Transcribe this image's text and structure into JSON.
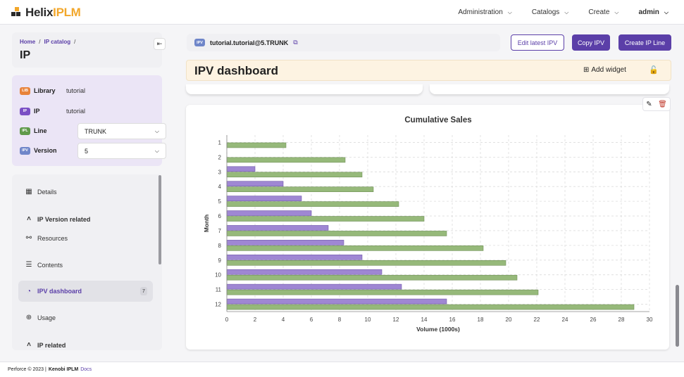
{
  "brand": {
    "name_part1": "Helix",
    "name_part2": "IPLM",
    "accent_color": "#f2a72b"
  },
  "nav": {
    "administration": "Administration",
    "catalogs": "Catalogs",
    "create": "Create",
    "user": "admin"
  },
  "breadcrumb": {
    "home": "Home",
    "catalog": "IP catalog",
    "sep": "/"
  },
  "page_title": "IP",
  "properties": {
    "library": {
      "badge": "LIB",
      "label": "Library",
      "value": "tutorial",
      "color": "#e8833a"
    },
    "ip": {
      "badge": "IP",
      "label": "IP",
      "value": "tutorial",
      "color": "#7a4fc4"
    },
    "line": {
      "badge": "IPL",
      "label": "Line",
      "value": "TRUNK",
      "color": "#5f9a4a"
    },
    "version": {
      "badge": "IPV",
      "label": "Version",
      "value": "5",
      "color": "#6f86c9"
    }
  },
  "sidebar": {
    "details": "Details",
    "ipv_related": "IP Version related",
    "resources": "Resources",
    "contents": "Contents",
    "ipv_dashboard": "IPV dashboard",
    "ipv_dashboard_count": "7",
    "usage": "Usage",
    "ip_related": "IP related"
  },
  "ipv": {
    "badge": "IPV",
    "name": "tutorial.tutorial@5.TRUNK"
  },
  "buttons": {
    "edit_latest": "Edit latest IPV",
    "copy_ipv": "Copy IPV",
    "create_ip_line": "Create IP Line"
  },
  "dashboard": {
    "title": "IPV dashboard",
    "add_widget": "Add widget"
  },
  "chart_data": {
    "type": "bar",
    "orientation": "horizontal",
    "title": "Cumulative Sales",
    "xlabel": "Volume (1000s)",
    "ylabel": "Month",
    "categories": [
      "1",
      "2",
      "3",
      "4",
      "5",
      "6",
      "7",
      "8",
      "9",
      "10",
      "11",
      "12"
    ],
    "xlim": [
      0,
      30
    ],
    "xticks": [
      0,
      2,
      4,
      6,
      8,
      10,
      12,
      14,
      16,
      18,
      20,
      22,
      24,
      26,
      28,
      30
    ],
    "grid": true,
    "legend": "none",
    "series": [
      {
        "color": "#9f87d3",
        "values": [
          0,
          0,
          2.0,
          4.0,
          5.3,
          6.0,
          7.2,
          8.3,
          9.6,
          11.0,
          12.4,
          15.6
        ]
      },
      {
        "color": "#96b97a",
        "values": [
          4.2,
          8.4,
          9.6,
          10.4,
          12.2,
          14.0,
          15.6,
          18.2,
          19.8,
          20.6,
          22.1,
          28.9
        ]
      }
    ]
  },
  "footer": {
    "copyright": "Perforce © 2023 |",
    "product": "Kenobi IPLM",
    "docs": "Docs"
  }
}
